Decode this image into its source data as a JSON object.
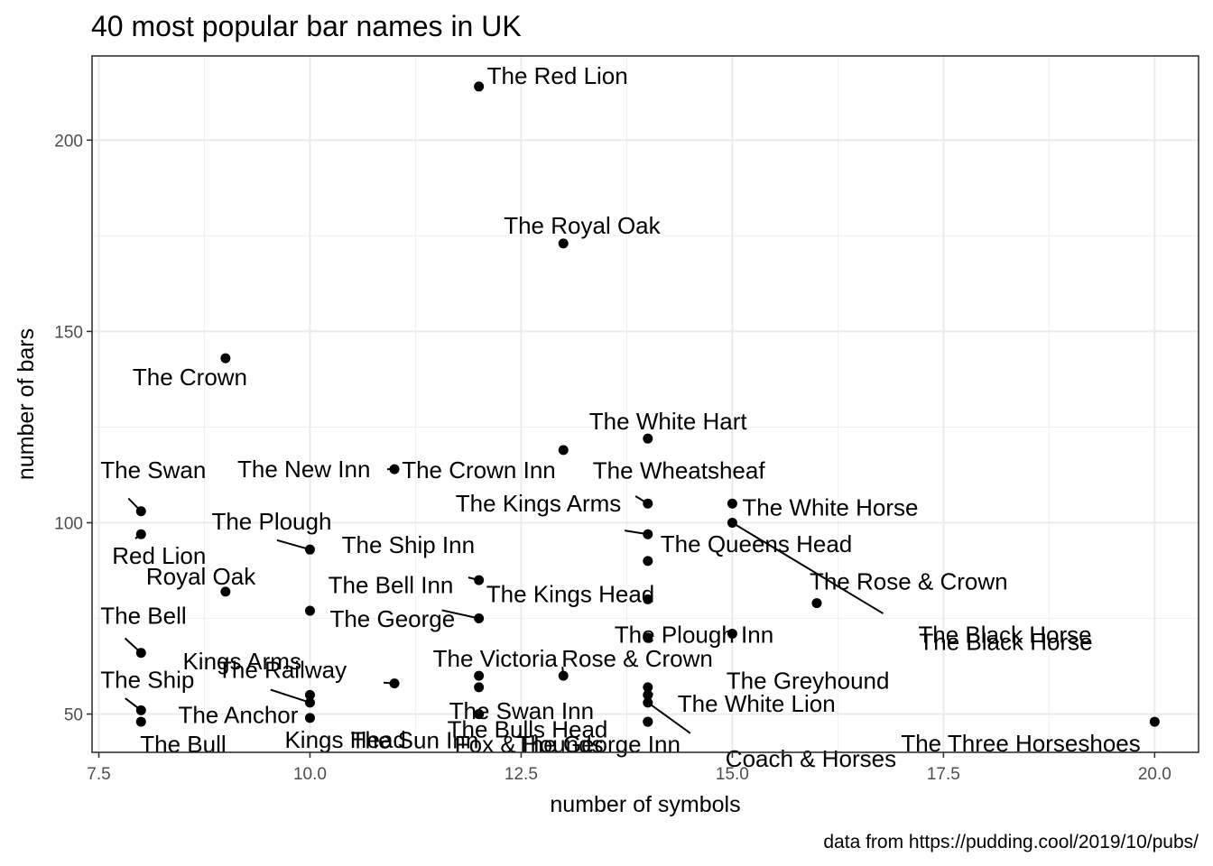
{
  "chart_data": {
    "type": "scatter",
    "title": "40 most popular bar names in UK",
    "xlabel": "number of symbols",
    "ylabel": "number of bars",
    "caption": "data from https://pudding.cool/2019/10/pubs/",
    "xlim": [
      7.42,
      20.52
    ],
    "ylim": [
      40,
      222
    ],
    "x_ticks": [
      7.5,
      10,
      12.5,
      15,
      17.5,
      20
    ],
    "x_tick_labels": [
      "7.5",
      "10.0",
      "12.5",
      "15.0",
      "17.5",
      "20.0"
    ],
    "y_ticks": [
      50,
      100,
      150,
      200
    ],
    "y_tick_labels": [
      "50",
      "100",
      "150",
      "200"
    ],
    "grid": true,
    "theme": "black-and-white",
    "points": [
      {
        "name": "The Red Lion",
        "x": 12,
        "y": 214
      },
      {
        "name": "The Royal Oak",
        "x": 13,
        "y": 173
      },
      {
        "name": "The Crown",
        "x": 9,
        "y": 143
      },
      {
        "name": "The White Hart",
        "x": 14,
        "y": 122
      },
      {
        "name": "The Crown Inn",
        "x": 13,
        "y": 119
      },
      {
        "name": "The New Inn",
        "x": 11,
        "y": 114
      },
      {
        "name": "The Wheatsheaf",
        "x": 14,
        "y": 105
      },
      {
        "name": "The White Horse",
        "x": 15,
        "y": 105
      },
      {
        "name": "The Swan",
        "x": 8,
        "y": 103
      },
      {
        "name": "The Black Horse",
        "x": 15,
        "y": 100
      },
      {
        "name": "Red Lion",
        "x": 8,
        "y": 97
      },
      {
        "name": "The Kings Arms",
        "x": 14,
        "y": 97
      },
      {
        "name": "The Plough",
        "x": 10,
        "y": 93
      },
      {
        "name": "The Queens Head",
        "x": 14,
        "y": 90
      },
      {
        "name": "The Ship Inn",
        "x": 12,
        "y": 85
      },
      {
        "name": "Royal Oak",
        "x": 9,
        "y": 82
      },
      {
        "name": "The Kings Head",
        "x": 14,
        "y": 80
      },
      {
        "name": "The Rose & Crown",
        "x": 16,
        "y": 79
      },
      {
        "name": "The George",
        "x": 10,
        "y": 77
      },
      {
        "name": "The Bell Inn",
        "x": 12,
        "y": 75
      },
      {
        "name": "The Black Horse",
        "x": 15,
        "y": 71
      },
      {
        "name": "The Plough Inn",
        "x": 14,
        "y": 70
      },
      {
        "name": "The Bell",
        "x": 8,
        "y": 66
      },
      {
        "name": "The Victoria",
        "x": 12,
        "y": 60
      },
      {
        "name": "Rose & Crown",
        "x": 13,
        "y": 60
      },
      {
        "name": "The Railway",
        "x": 11,
        "y": 58
      },
      {
        "name": "The Swan Inn",
        "x": 12,
        "y": 57
      },
      {
        "name": "The White Lion",
        "x": 14,
        "y": 57
      },
      {
        "name": "The Anchor",
        "x": 10,
        "y": 55
      },
      {
        "name": "The Greyhound",
        "x": 14,
        "y": 55
      },
      {
        "name": "Kings Arms",
        "x": 10,
        "y": 53
      },
      {
        "name": "Coach & Horses",
        "x": 14,
        "y": 53
      },
      {
        "name": "The Ship",
        "x": 8,
        "y": 51
      },
      {
        "name": "The Sun Inn",
        "x": 12,
        "y": 50
      },
      {
        "name": "The Bulls Head",
        "x": 12,
        "y": 50
      },
      {
        "name": "Kings Head",
        "x": 10,
        "y": 49
      },
      {
        "name": "The Bull",
        "x": 8,
        "y": 48
      },
      {
        "name": "The George Inn",
        "x": 14,
        "y": 48
      },
      {
        "name": "Fox & Hounds",
        "x": 14,
        "y": 48
      },
      {
        "name": "The Three Horseshoes",
        "x": 20,
        "y": 48
      }
    ]
  }
}
